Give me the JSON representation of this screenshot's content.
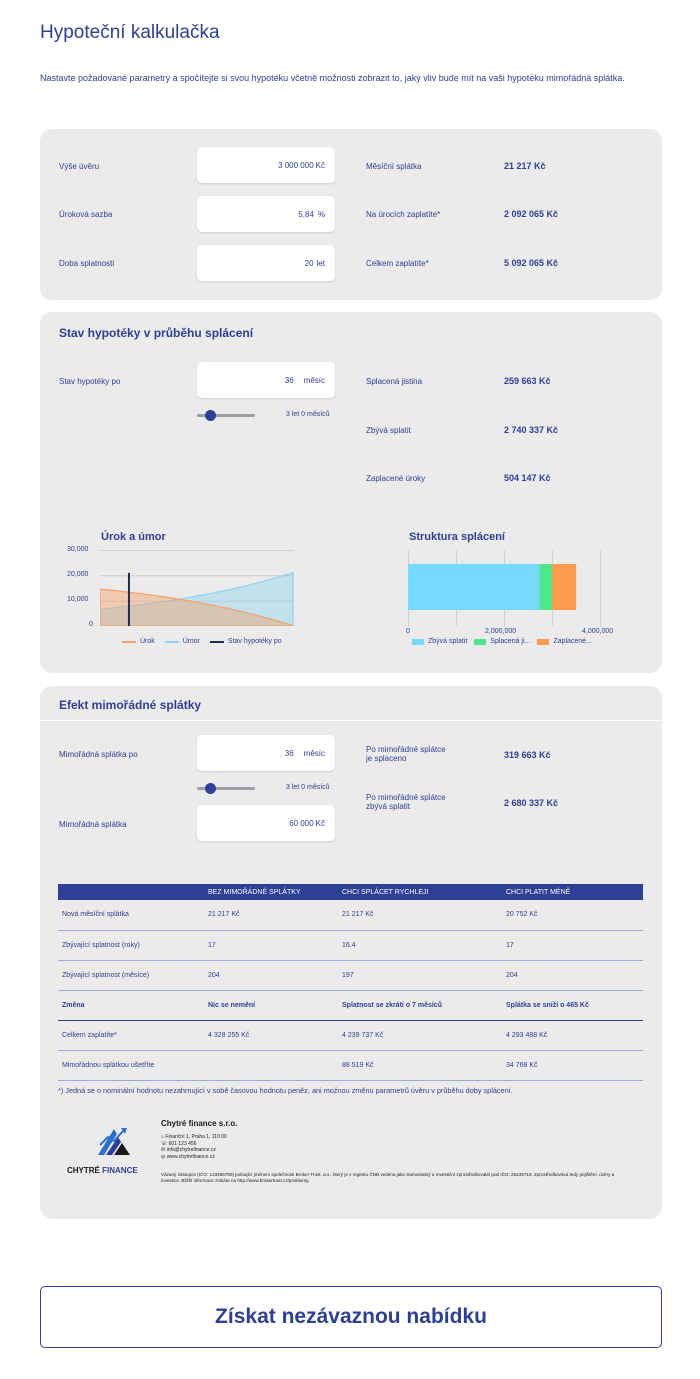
{
  "title": "Hypoteční kalkulačka",
  "intro": "Nastavte požadované parametry a spočítejte si svou hypotéku včetně možnosti zobrazit to, jaký vliv bude mít na vaši hypotéku mimořádná splátka.",
  "calc": {
    "loan_label": "Výše úvěru",
    "loan_value": "3 000 000",
    "loan_unit": "Kč",
    "rate_label": "Úroková sazba",
    "rate_value": "5,84",
    "rate_unit": "%",
    "term_label": "Doba splatnosti",
    "term_value": "20",
    "term_unit": "let",
    "monthly_label": "Měsíční splátka",
    "monthly_value": "21 217 Kč",
    "interest_label": "Na úrocích zaplatíte*",
    "interest_value": "2 092 065 Kč",
    "total_label": "Celkem zaplatíte*",
    "total_value": "5 092 065 Kč"
  },
  "status": {
    "heading": "Stav hypotéky v průběhu splácení",
    "after_label": "Stav hypotéky po",
    "after_value": "36",
    "after_unit": "měsíc",
    "slider_note": "3 let 0 měsíců",
    "slider_level": 0.15,
    "principal_label": "Splacená jistina",
    "principal_value": "259 663 Kč",
    "remaining_label": "Zbývá splatit",
    "remaining_value": "2 740 337 Kč",
    "paid_interest_label": "Zaplacené úroky",
    "paid_interest_value": "504 147 Kč"
  },
  "chart_data": [
    {
      "type": "area",
      "title": "Úrok a úmor",
      "ylim": [
        0,
        30000
      ],
      "yticks": [
        "30,000",
        "20,000",
        "10,000",
        "0"
      ],
      "x_months": [
        0,
        240
      ],
      "series": [
        {
          "name": "Úrok",
          "color": "#f4a26a",
          "start": 14600,
          "end": 100
        },
        {
          "name": "Úmor",
          "color": "#8fd4f0",
          "start": 6600,
          "end": 21100
        },
        {
          "name": "Stav hypotéky po",
          "color": "#1f2a55",
          "month": 36
        }
      ],
      "grid": true,
      "legend": "bottom"
    },
    {
      "type": "bar",
      "title": "Struktura splácení",
      "orientation": "horizontal",
      "stacked": true,
      "xlim": [
        0,
        4000000
      ],
      "xticks": [
        "0",
        "2,000,000",
        "4,000,000"
      ],
      "series": [
        {
          "name": "Zbývá splatit",
          "color": "#74d9fb",
          "value": 2740337
        },
        {
          "name": "Splacená ji...",
          "color": "#4ee88a",
          "value": 259663
        },
        {
          "name": "Zaplacené...",
          "color": "#fd9a4f",
          "value": 504147
        }
      ],
      "grid": true,
      "legend": "bottom"
    }
  ],
  "extra": {
    "heading": "Efekt mimořádné splátky",
    "after_label": "Mimořádná splátka po",
    "after_value": "36",
    "after_unit": "měsíc",
    "slider_note": "3 let 0 měsíců",
    "slider_level": 0.15,
    "amount_label": "Mimořádná splátka",
    "amount_value": "60 000",
    "amount_unit": "Kč",
    "paid_label_1": "Po mimořádné splátce",
    "paid_label_2": "je splaceno",
    "paid_value": "319 663 Kč",
    "remain_label_1": "Po mimořádné splátce",
    "remain_label_2": "zbývá splatit",
    "remain_value": "2 680 337 Kč"
  },
  "table": {
    "headers": [
      "",
      "BEZ MIMOŘÁDNÉ SPLÁTKY",
      "CHCI SPLÁCET RYCHLEJI",
      "CHCI PLATIT MÉNĚ"
    ],
    "rows": [
      [
        "Nová měsíční splátka",
        "21 217 Kč",
        "21 217 Kč",
        "20 752 Kč"
      ],
      [
        "Zbývající splatnost (roky)",
        "17",
        "16.4",
        "17"
      ],
      [
        "Zbývající splatnost (měsíce)",
        "204",
        "197",
        "204"
      ]
    ],
    "change": [
      "Změna",
      "Nic se nemění",
      "Splatnost se zkrátí o 7 měsíců",
      "Splátka se sníží o 465 Kč"
    ],
    "rows2": [
      [
        "Celkem zaplatíte*",
        "4 328 255 Kč",
        "4 239 737 Kč",
        "4 293 488 Kč"
      ],
      [
        "Mimořádnou splátkou ušetříte",
        "",
        "88 519 Kč",
        "34 768 Kč"
      ]
    ]
  },
  "footnote": "*) Jedná se o nominální hodnotu nezahrnující v sobě časovou hodnotu peněz, ani možnou změnu parametrů úvěru v průběhu doby splácení.",
  "footer": {
    "logo_word1": "CHYTRÉ",
    "logo_word2": "FINANCE",
    "company": "Chytré finance s.r.o.",
    "address": "Finanční 1, Praha 1, 110 00",
    "phone": "601 123 456",
    "email": "info@chytrefinance.cz",
    "web": "www.chytrefinance.cz",
    "disclaimer": "Vázaný zástupce (IČO: 123456789) jednající jménem společnosti Broker Trust, a.s., který je v registru ČNB vedena jako Samostatný a Investiční zprostředkovatel pod IČO: 26439719. Zprostředkovává tedy pojištění, úvěry a investice. Bližší informace získáte na http://www.brokertrust.cz/proklienty."
  },
  "cta_label": "Získat nezávaznou nabídku"
}
